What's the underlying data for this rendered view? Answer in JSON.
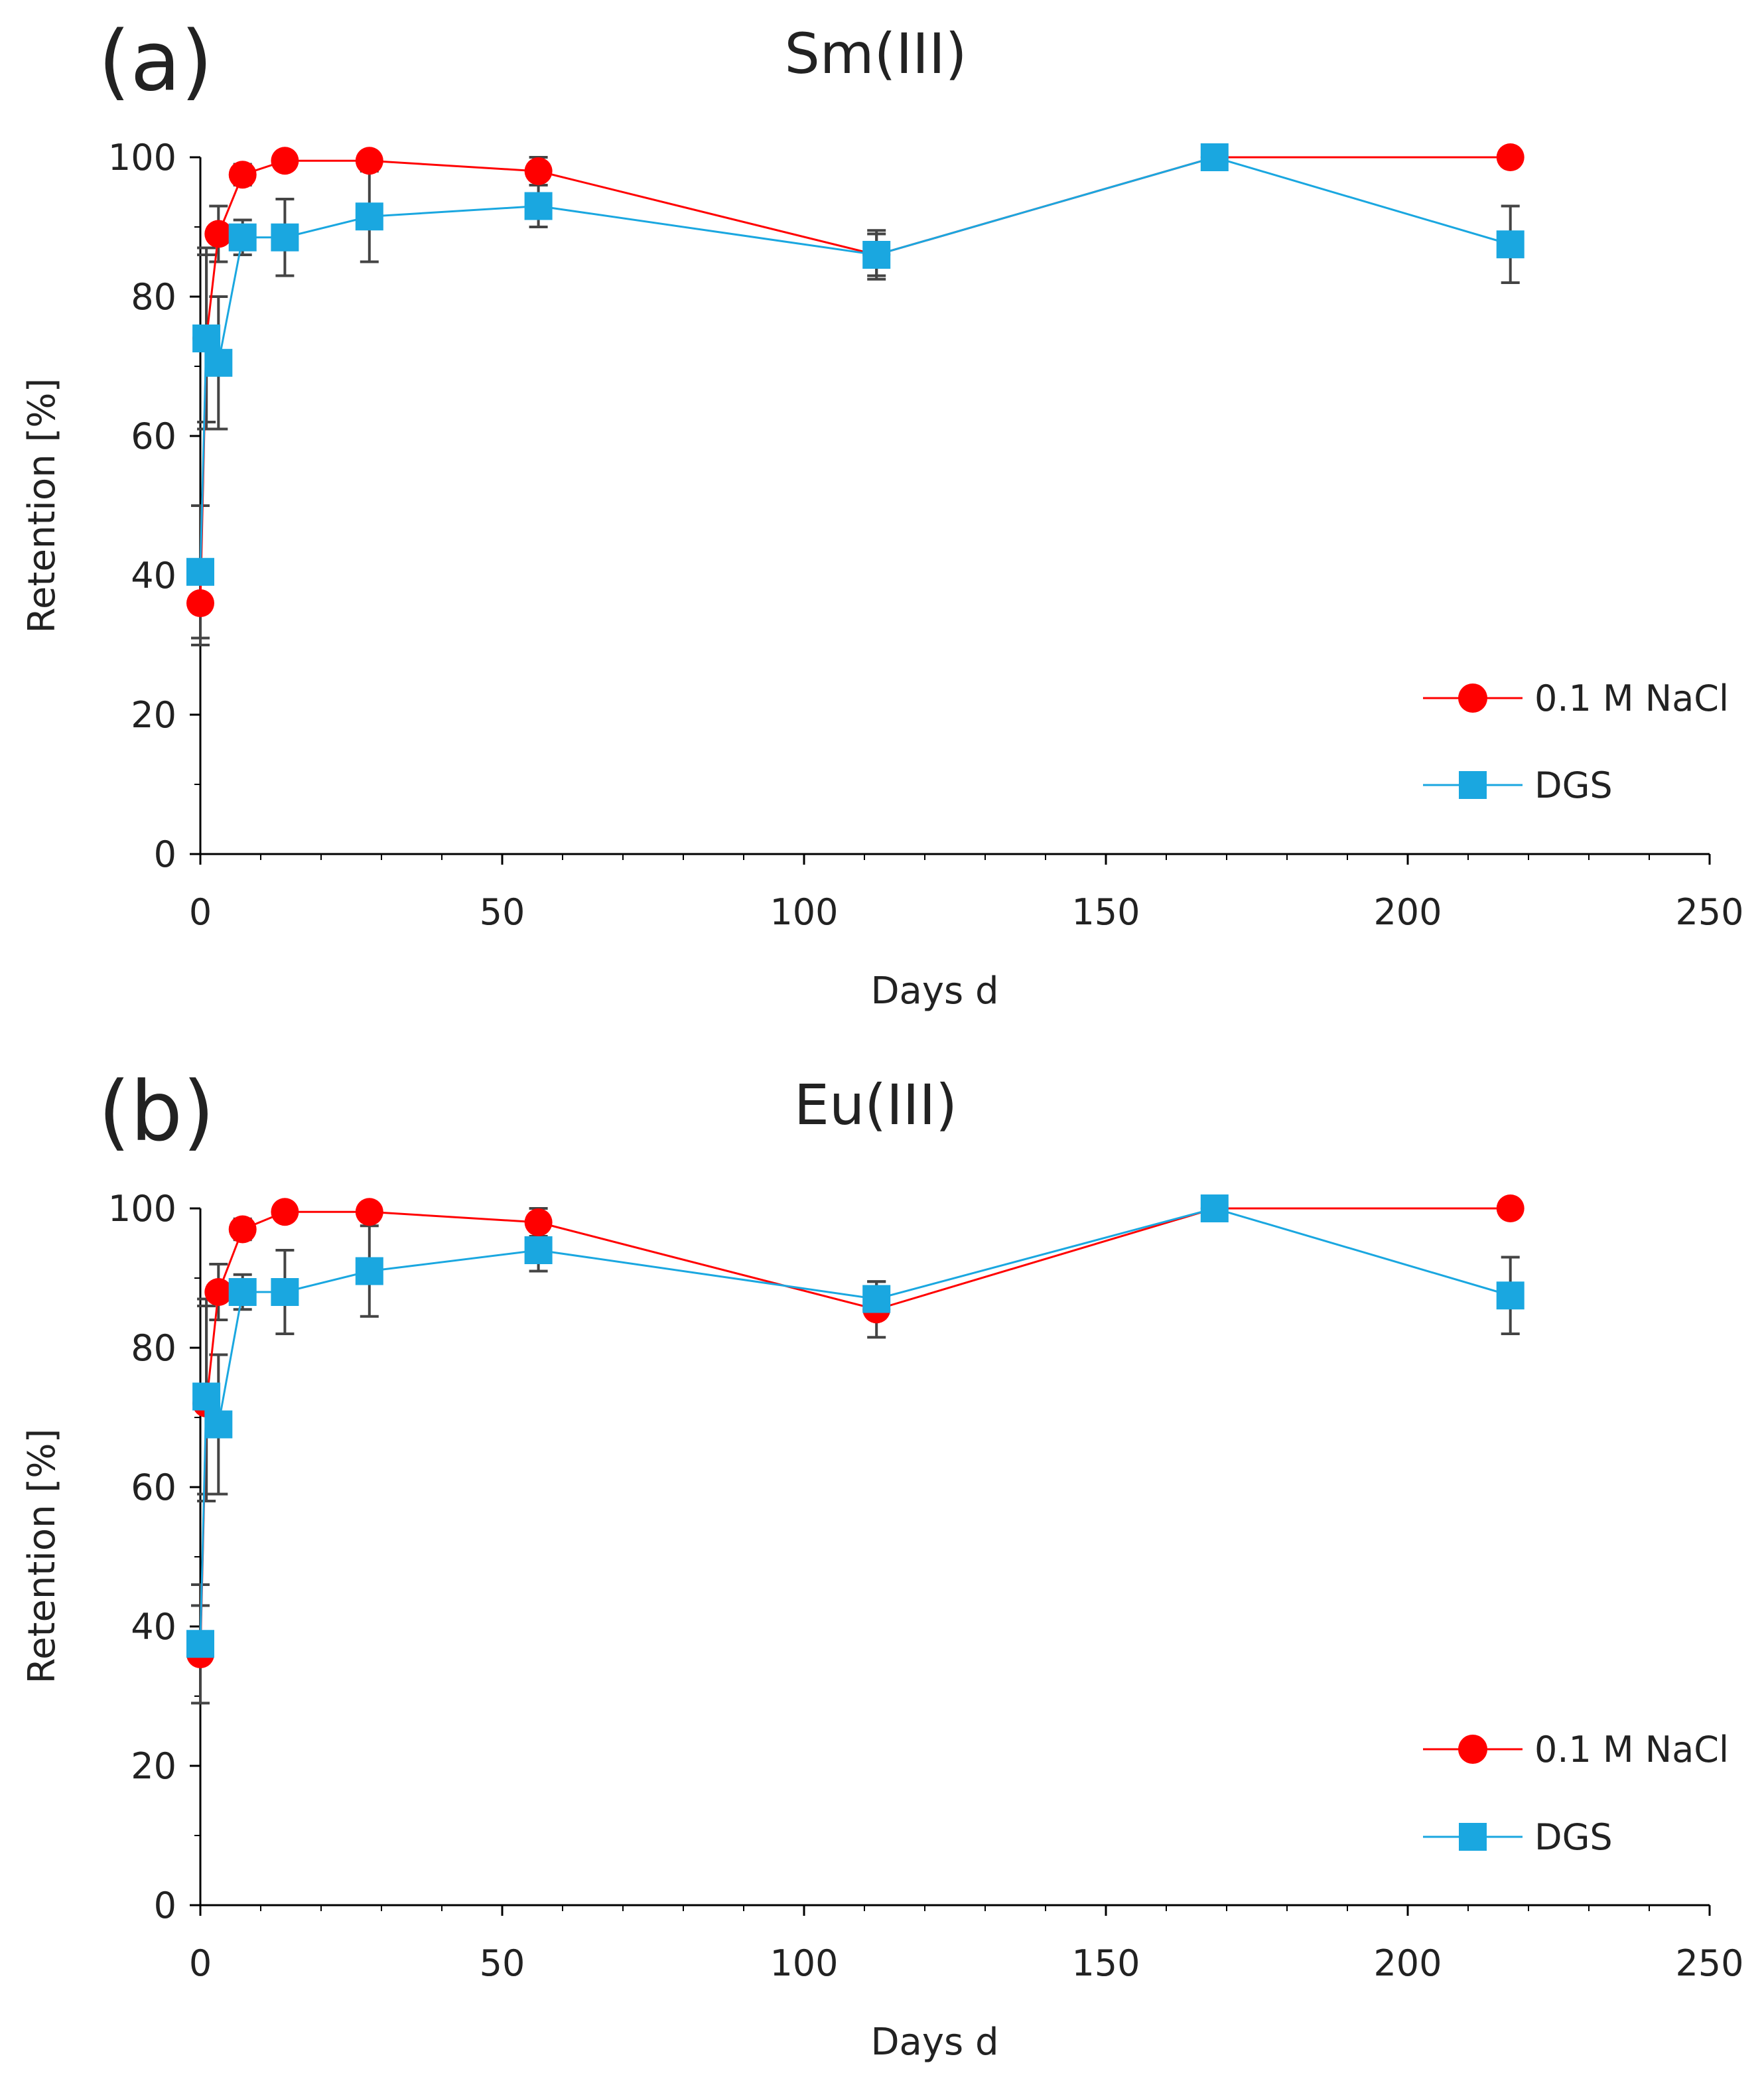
{
  "chart_data": [
    {
      "type": "line",
      "panel_label": "(a)",
      "title": "Sm(III)",
      "xlabel": "Days d",
      "ylabel": "Retention [%]",
      "xlim": [
        0,
        250
      ],
      "ylim": [
        0,
        100
      ],
      "xticks": [
        0,
        50,
        100,
        150,
        200,
        250
      ],
      "yticks": [
        0,
        20,
        40,
        60,
        80,
        100
      ],
      "grid": false,
      "legend_position": "bottom-right",
      "series": [
        {
          "name": "0.1 M NaCl",
          "color": "#ff0000",
          "marker": "circle",
          "x": [
            0,
            1,
            3,
            7,
            14,
            28,
            56,
            112,
            168,
            217
          ],
          "y": [
            36,
            74,
            89,
            97.5,
            99.5,
            99.5,
            98,
            86,
            100,
            100
          ],
          "err": [
            6,
            12,
            4,
            1.5,
            0.5,
            0.5,
            2,
            3,
            0.5,
            0.5
          ]
        },
        {
          "name": "DGS",
          "color": "#1aa7e0",
          "marker": "square",
          "x": [
            0,
            1,
            3,
            7,
            14,
            28,
            56,
            112,
            168,
            217
          ],
          "y": [
            40.5,
            74,
            70.5,
            88.5,
            88.5,
            91.5,
            93,
            86,
            100,
            87.5
          ],
          "err": [
            9.5,
            13,
            9.5,
            2.5,
            5.5,
            6.5,
            3,
            3.5,
            0.5,
            5.5
          ]
        }
      ]
    },
    {
      "type": "line",
      "panel_label": "(b)",
      "title": "Eu(III)",
      "xlabel": "Days d",
      "ylabel": "Retention [%]",
      "xlim": [
        0,
        250
      ],
      "ylim": [
        0,
        100
      ],
      "xticks": [
        0,
        50,
        100,
        150,
        200,
        250
      ],
      "yticks": [
        0,
        20,
        40,
        60,
        80,
        100
      ],
      "grid": false,
      "legend_position": "bottom-right",
      "series": [
        {
          "name": "0.1 M NaCl",
          "color": "#ff0000",
          "marker": "circle",
          "x": [
            0,
            1,
            3,
            7,
            14,
            28,
            56,
            112,
            168,
            217
          ],
          "y": [
            36,
            72,
            88,
            97,
            99.5,
            99.5,
            98,
            85.5,
            100,
            100
          ],
          "err": [
            7,
            14,
            4,
            1.5,
            0.5,
            0.5,
            2,
            4,
            0.5,
            0.5
          ]
        },
        {
          "name": "DGS",
          "color": "#1aa7e0",
          "marker": "square",
          "x": [
            0,
            1,
            3,
            7,
            14,
            28,
            56,
            112,
            168,
            217
          ],
          "y": [
            37.5,
            73,
            69,
            88,
            88,
            91,
            94,
            87,
            100,
            87.5
          ],
          "err": [
            8.5,
            14,
            10,
            2.5,
            6,
            6.5,
            3,
            2.5,
            0.5,
            5.5
          ]
        }
      ]
    }
  ]
}
